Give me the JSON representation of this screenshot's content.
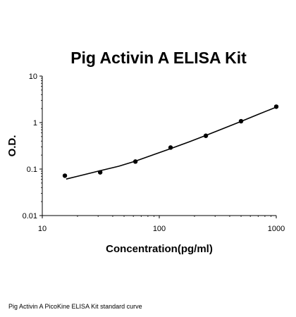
{
  "chart_data": {
    "type": "scatter",
    "title": "Pig Activin A ELISA Kit",
    "xlabel": "Concentration(pg/ml)",
    "ylabel": "O.D.",
    "x_scale": "log",
    "y_scale": "log",
    "xlim": [
      10,
      1000
    ],
    "ylim": [
      0.01,
      10
    ],
    "x_ticks": [
      "10",
      "100",
      "1000"
    ],
    "y_ticks": [
      "0.01",
      "0.1",
      "1",
      "10"
    ],
    "grid": false,
    "legend": "none",
    "series": [
      {
        "x": [
          15.6,
          31.25,
          62.5,
          125,
          250,
          500,
          1000
        ],
        "y": [
          0.072,
          0.085,
          0.145,
          0.29,
          0.52,
          1.07,
          2.2
        ],
        "marker": "circle"
      }
    ],
    "fit_curve": {
      "x": [
        16,
        20,
        30,
        45,
        62.5,
        90,
        125,
        180,
        250,
        350,
        500,
        700,
        1000
      ],
      "y": [
        0.061,
        0.07,
        0.09,
        0.115,
        0.148,
        0.205,
        0.275,
        0.385,
        0.53,
        0.74,
        1.06,
        1.5,
        2.15
      ]
    },
    "colors": {
      "marker": "#000000",
      "line": "#000000",
      "axis": "#000000"
    }
  },
  "caption": "Pig Activin A PicoKine ELISA Kit standard curve"
}
